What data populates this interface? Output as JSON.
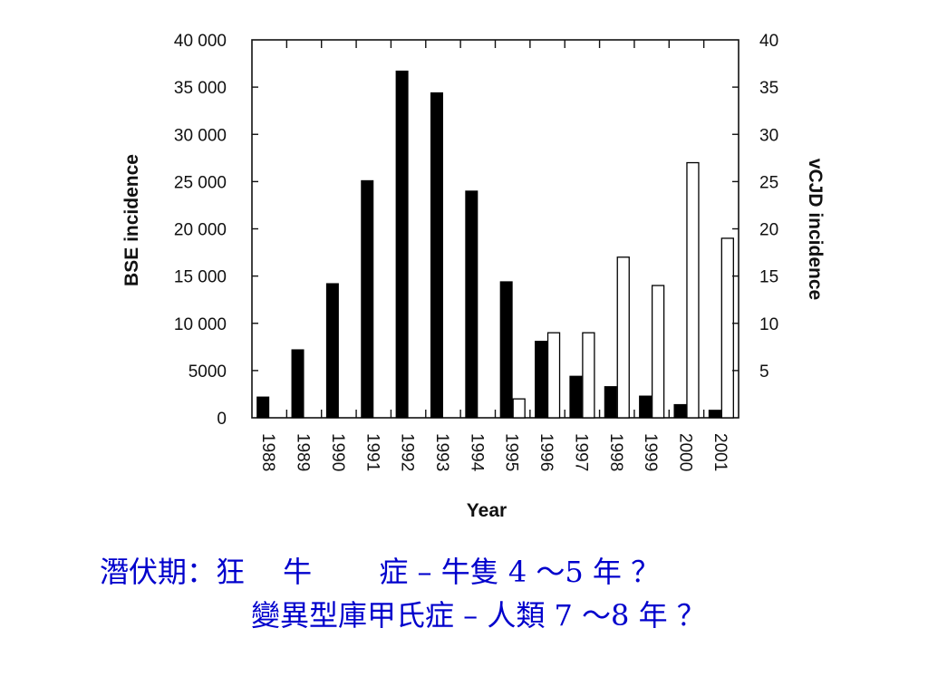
{
  "chart_data": {
    "type": "bar",
    "categories": [
      "1988",
      "1989",
      "1990",
      "1991",
      "1992",
      "1993",
      "1994",
      "1995",
      "1996",
      "1997",
      "1998",
      "1999",
      "2000",
      "2001"
    ],
    "xlabel": "Year",
    "y_left_label": "BSE incidence",
    "y_right_label": "vCJD incidence",
    "y_left_ticks": [
      "0",
      "5000",
      "10 000",
      "15 000",
      "20 000",
      "25 000",
      "30 000",
      "35 000",
      "40 000"
    ],
    "y_right_ticks": [
      "5",
      "10",
      "15",
      "20",
      "25",
      "30",
      "35",
      "40"
    ],
    "y_left_lim": [
      0,
      40000
    ],
    "y_right_lim": [
      0,
      40
    ],
    "series": [
      {
        "name": "BSE incidence",
        "axis": "left",
        "fill": "#000000",
        "values": [
          2200,
          7200,
          14200,
          25100,
          36700,
          34400,
          24000,
          14400,
          8100,
          4400,
          3300,
          2300,
          1400,
          800
        ]
      },
      {
        "name": "vCJD incidence",
        "axis": "right",
        "fill": "#ffffff",
        "values": [
          0,
          0,
          0,
          0,
          0,
          0,
          0,
          2,
          9,
          9,
          17,
          14,
          27,
          19
        ]
      }
    ],
    "grid": false
  },
  "caption": {
    "line1": "潛伏期：狂　 牛　　 症 – 牛隻 4 ～5 年 ？",
    "line2": "變異型庫甲氏症 – 人類 7 ～8 年 ？",
    "color": "#0000cc"
  }
}
